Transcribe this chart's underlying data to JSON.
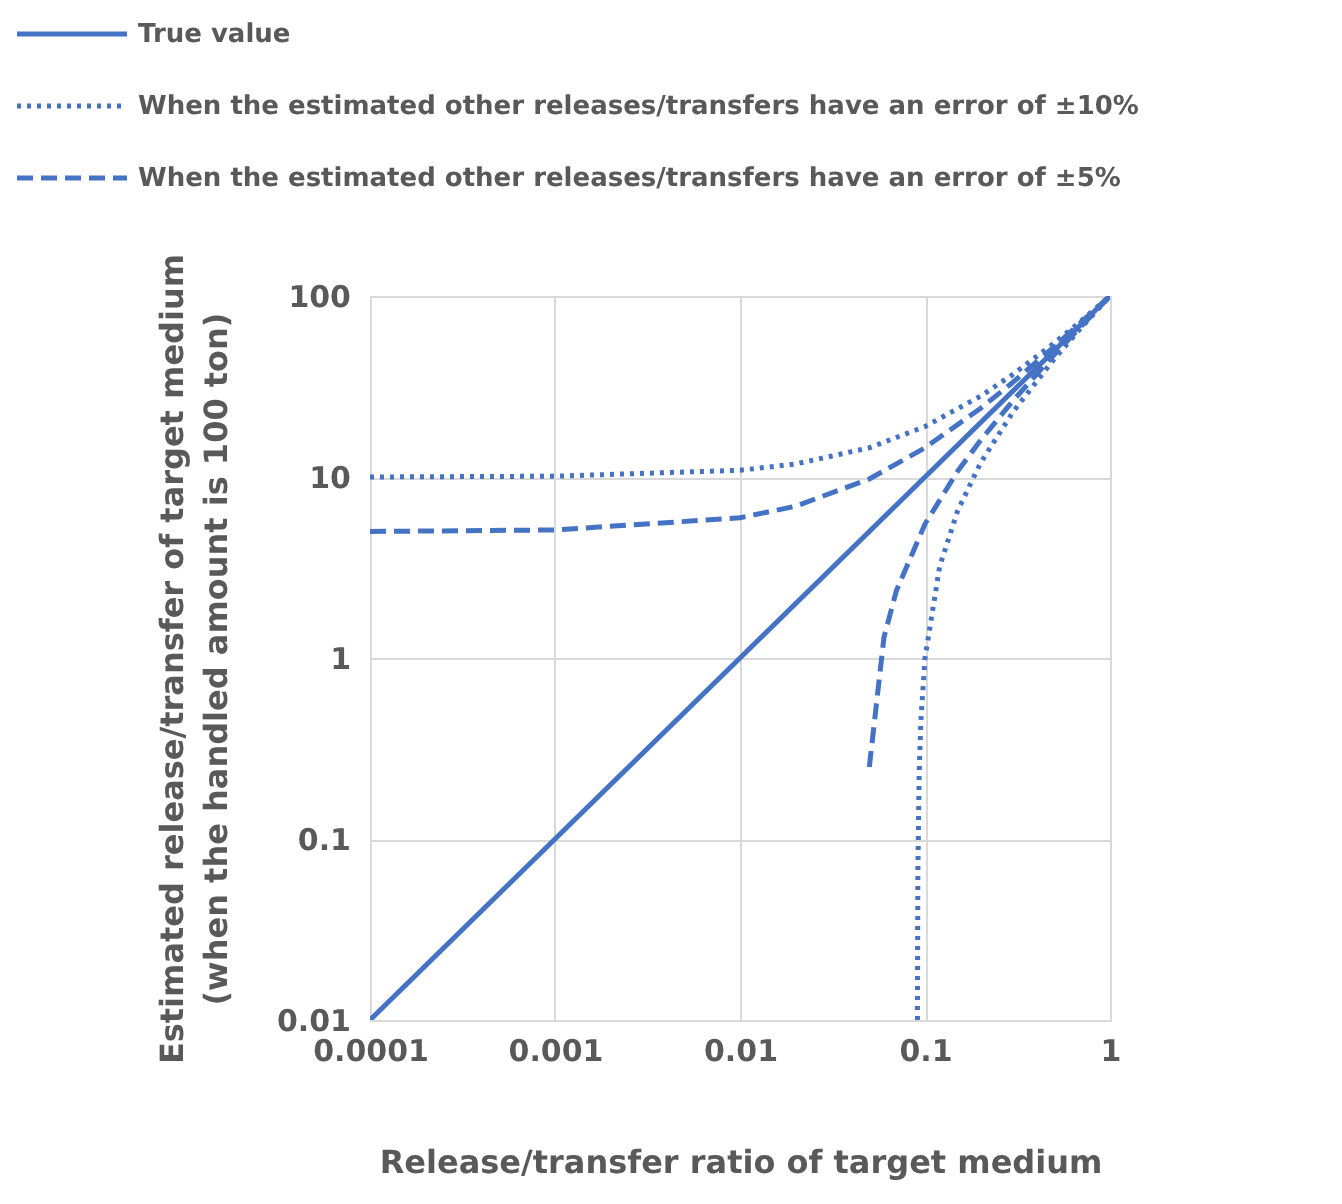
{
  "chart_data": {
    "type": "line",
    "xlabel": "Release/transfer ratio of target medium",
    "ylabel": "Estimated release/transfer of target medium\n(when the handled amount is 100 ton)",
    "log": "xy",
    "grid": true,
    "legend": "top left",
    "marker": "none",
    "xlim": [
      0.0001,
      1
    ],
    "xticks": [
      0.0001,
      0.001,
      0.01,
      0.1,
      1
    ],
    "ylim": [
      0.01,
      100
    ],
    "yticks": [
      0.01,
      0.1,
      1,
      10,
      100
    ],
    "series": [
      {
        "name": "True value",
        "color": "#4472c4",
        "line_style": "solid",
        "x": [
          0.0001,
          0.001,
          0.01,
          0.1,
          1
        ],
        "values": [
          0.01,
          0.1,
          1,
          10,
          100
        ]
      },
      {
        "name": "When the estimated other releases/transfers have an error of ±10%",
        "color": "#4472c4",
        "line_style": "dotted",
        "x": [
          0.0001,
          0.001,
          0.01,
          0.02,
          0.05,
          0.1,
          0.2,
          0.3,
          0.5,
          0.7,
          1
        ],
        "values": [
          10,
          10.1,
          10.9,
          11.8,
          14.5,
          19,
          28,
          37,
          55,
          73,
          100
        ]
      },
      {
        "name": "When the estimated other releases/transfers have an error of ±5%",
        "color": "#4472c4",
        "line_style": "dashed",
        "x": [
          0.0001,
          0.001,
          0.01,
          0.02,
          0.05,
          0.1,
          0.2,
          0.3,
          0.5,
          1
        ],
        "values": [
          5,
          5.1,
          5.95,
          6.9,
          9.75,
          14.5,
          24,
          33.5,
          52.5,
          100
        ]
      },
      {
        "color": "#4472c4",
        "line_style": "dotted",
        "x": [
          0.091,
          0.0915,
          0.093,
          0.095,
          0.1,
          0.12,
          0.15,
          0.2,
          0.3,
          0.5,
          0.7,
          1
        ],
        "values": [
          0.01,
          0.065,
          0.23,
          0.45,
          1,
          3.2,
          6.5,
          12,
          23,
          45,
          67,
          100
        ]
      },
      {
        "color": "#4472c4",
        "line_style": "dashed",
        "x": [
          0.05,
          0.06,
          0.07,
          0.1,
          0.15,
          0.2,
          0.3,
          0.5,
          1
        ],
        "values": [
          0.25,
          1.3,
          2.35,
          5.5,
          10.75,
          16,
          26.5,
          47.5,
          100
        ]
      }
    ]
  }
}
